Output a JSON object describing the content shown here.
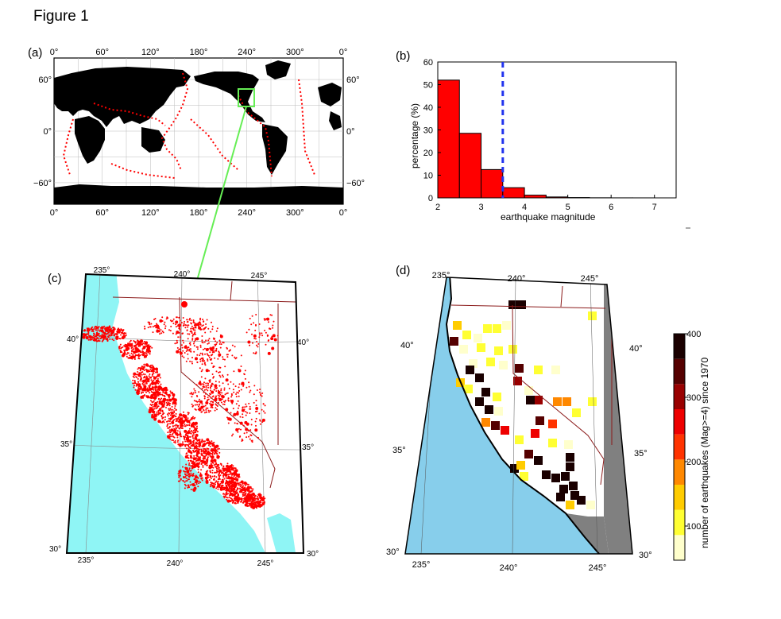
{
  "figure": {
    "title": "Figure 1"
  },
  "panels": {
    "a": "(a)",
    "b": "(b)",
    "c": "(c)",
    "d": "(d)"
  },
  "colors": {
    "ocean_c": "#8ff5f5",
    "ocean_d": "#87ceeb",
    "quake": "#ff0000",
    "land_a": "#000000",
    "box": "#66ee55",
    "mean_line": "#2233ee",
    "out_of_region": "#808080"
  },
  "map_a": {
    "lon_ticks": [
      "0°",
      "60°",
      "120°",
      "180°",
      "240°",
      "300°",
      "0°"
    ],
    "lat_ticks": [
      "60°",
      "0°",
      "−60°"
    ]
  },
  "chart_data": {
    "type": "bar",
    "title": "",
    "xlabel": "earthquake magnitude",
    "ylabel": "percentage (%)",
    "xlim": [
      2,
      7.5
    ],
    "ylim": [
      0,
      60
    ],
    "xticks": [
      2,
      3,
      4,
      5,
      6,
      7
    ],
    "yticks": [
      0,
      10,
      20,
      30,
      40,
      50,
      60
    ],
    "bin_width": 0.5,
    "bin_starts": [
      2.0,
      2.5,
      3.0,
      3.5,
      4.0,
      4.5,
      5.0,
      5.5,
      6.0,
      6.5,
      7.0
    ],
    "values": [
      52,
      28.5,
      12.5,
      4.5,
      1.2,
      0.4,
      0.15,
      0.05,
      0.02,
      0.01,
      0.0
    ],
    "threshold_magnitude": 3.5
  },
  "map_c": {
    "top_lon": [
      "235°",
      "240°",
      "245°"
    ],
    "bottom_lon": [
      "235°",
      "240°",
      "245°"
    ],
    "left_lat": [
      "40°",
      "35°",
      "30°"
    ],
    "right_lat": [
      "40°",
      "35°",
      "30°"
    ]
  },
  "map_d": {
    "top_lon": [
      "235°",
      "240°",
      "245°"
    ],
    "bottom_lon": [
      "235°",
      "240°",
      "245°"
    ],
    "left_lat": [
      "40°",
      "35°",
      "30°"
    ],
    "right_lat": [
      "40°",
      "35°",
      "30°"
    ]
  },
  "colorbar": {
    "label": "number of earthquakes (Mag>=4) since 1970",
    "ticks": [
      "100",
      "200",
      "300",
      "400"
    ],
    "colors": [
      "#ffffcc",
      "#ffff33",
      "#ffcc00",
      "#ff8800",
      "#ff3300",
      "#ee0000",
      "#990000",
      "#550000",
      "#1a0000"
    ]
  }
}
